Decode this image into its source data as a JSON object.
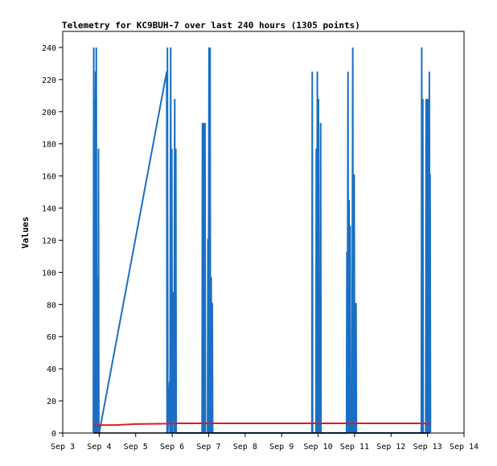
{
  "chart_data": {
    "type": "line",
    "title": "Telemetry for KC9BUH-7 over last 240 hours (1305 points)",
    "xlabel": "",
    "ylabel": "Values",
    "xlim": [
      3,
      14
    ],
    "ylim": [
      0,
      250
    ],
    "x_tick_values": [
      3,
      4,
      5,
      6,
      7,
      8,
      9,
      10,
      11,
      12,
      13,
      14
    ],
    "x_tick_labels": [
      "Sep 3",
      "Sep 4",
      "Sep 5",
      "Sep 6",
      "Sep 7",
      "Sep 8",
      "Sep 9",
      "Sep 10",
      "Sep 11",
      "Sep 12",
      "Sep 13",
      "Sep 14"
    ],
    "y_ticks": [
      0,
      20,
      40,
      60,
      80,
      100,
      120,
      140,
      160,
      180,
      200,
      220,
      240
    ],
    "grid": false,
    "legend": "none",
    "series": [
      {
        "color": "#1a6fc4",
        "points": [
          [
            3.84,
            0
          ],
          [
            3.85,
            240
          ],
          [
            3.86,
            0
          ],
          [
            3.87,
            208
          ],
          [
            3.88,
            0
          ],
          [
            3.9,
            225
          ],
          [
            3.91,
            0
          ],
          [
            3.92,
            240
          ],
          [
            3.93,
            0
          ],
          [
            3.94,
            97
          ],
          [
            3.95,
            0
          ],
          [
            3.96,
            72
          ],
          [
            3.97,
            0
          ],
          [
            3.98,
            177
          ],
          [
            3.99,
            0
          ],
          [
            4.0,
            0
          ],
          [
            5.85,
            225
          ],
          [
            5.86,
            0
          ],
          [
            5.87,
            240
          ],
          [
            5.88,
            0
          ],
          [
            5.93,
            32
          ],
          [
            5.94,
            0
          ],
          [
            5.96,
            240
          ],
          [
            5.97,
            0
          ],
          [
            5.99,
            177
          ],
          [
            6.0,
            0
          ],
          [
            6.04,
            88
          ],
          [
            6.05,
            0
          ],
          [
            6.07,
            208
          ],
          [
            6.08,
            0
          ],
          [
            6.1,
            177
          ],
          [
            6.11,
            0
          ],
          [
            6.82,
            0
          ],
          [
            6.83,
            193
          ],
          [
            6.84,
            0
          ],
          [
            6.86,
            193
          ],
          [
            6.87,
            0
          ],
          [
            6.9,
            193
          ],
          [
            6.91,
            0
          ],
          [
            6.97,
            0
          ],
          [
            6.98,
            121
          ],
          [
            6.99,
            0
          ],
          [
            7.01,
            240
          ],
          [
            7.02,
            0
          ],
          [
            7.04,
            240
          ],
          [
            7.05,
            0
          ],
          [
            7.07,
            97
          ],
          [
            7.08,
            0
          ],
          [
            7.1,
            81
          ],
          [
            7.11,
            0
          ],
          [
            9.83,
            0
          ],
          [
            9.84,
            225
          ],
          [
            9.85,
            0
          ],
          [
            9.94,
            0
          ],
          [
            9.95,
            177
          ],
          [
            9.96,
            0
          ],
          [
            9.98,
            225
          ],
          [
            9.99,
            0
          ],
          [
            10.01,
            208
          ],
          [
            10.02,
            0
          ],
          [
            10.04,
            25
          ],
          [
            10.05,
            0
          ],
          [
            10.07,
            193
          ],
          [
            10.08,
            0
          ],
          [
            10.78,
            0
          ],
          [
            10.79,
            113
          ],
          [
            10.8,
            0
          ],
          [
            10.82,
            225
          ],
          [
            10.83,
            0
          ],
          [
            10.85,
            145
          ],
          [
            10.86,
            0
          ],
          [
            10.88,
            129
          ],
          [
            10.89,
            0
          ],
          [
            10.92,
            32
          ],
          [
            10.93,
            0
          ],
          [
            10.95,
            240
          ],
          [
            10.96,
            0
          ],
          [
            10.99,
            161
          ],
          [
            11.0,
            0
          ],
          [
            11.03,
            0
          ],
          [
            11.04,
            81
          ],
          [
            11.05,
            0
          ],
          [
            12.83,
            0
          ],
          [
            12.84,
            240
          ],
          [
            12.85,
            0
          ],
          [
            12.87,
            208
          ],
          [
            12.88,
            0
          ],
          [
            12.95,
            0
          ],
          [
            12.96,
            208
          ],
          [
            12.97,
            0
          ],
          [
            12.99,
            208
          ],
          [
            13.0,
            0
          ],
          [
            13.02,
            208
          ],
          [
            13.03,
            0
          ],
          [
            13.05,
            225
          ],
          [
            13.06,
            0
          ],
          [
            13.07,
            161
          ],
          [
            13.08,
            0
          ]
        ]
      },
      {
        "color": "#e01b1b",
        "points": [
          [
            3.84,
            4.9
          ],
          [
            4.0,
            4.9
          ],
          [
            4.5,
            5.0
          ],
          [
            5.0,
            5.6
          ],
          [
            5.85,
            5.8
          ],
          [
            6.0,
            6.0
          ],
          [
            7.0,
            6.0
          ],
          [
            8.0,
            6.0
          ],
          [
            9.0,
            6.0
          ],
          [
            9.84,
            6.0
          ],
          [
            10.0,
            6.0
          ],
          [
            11.0,
            6.0
          ],
          [
            12.0,
            6.0
          ],
          [
            12.84,
            6.0
          ],
          [
            13.0,
            5.8
          ],
          [
            13.07,
            5.5
          ]
        ]
      },
      {
        "color": "#000000",
        "points": [
          [
            3.84,
            0
          ],
          [
            13.07,
            0
          ]
        ]
      }
    ]
  }
}
